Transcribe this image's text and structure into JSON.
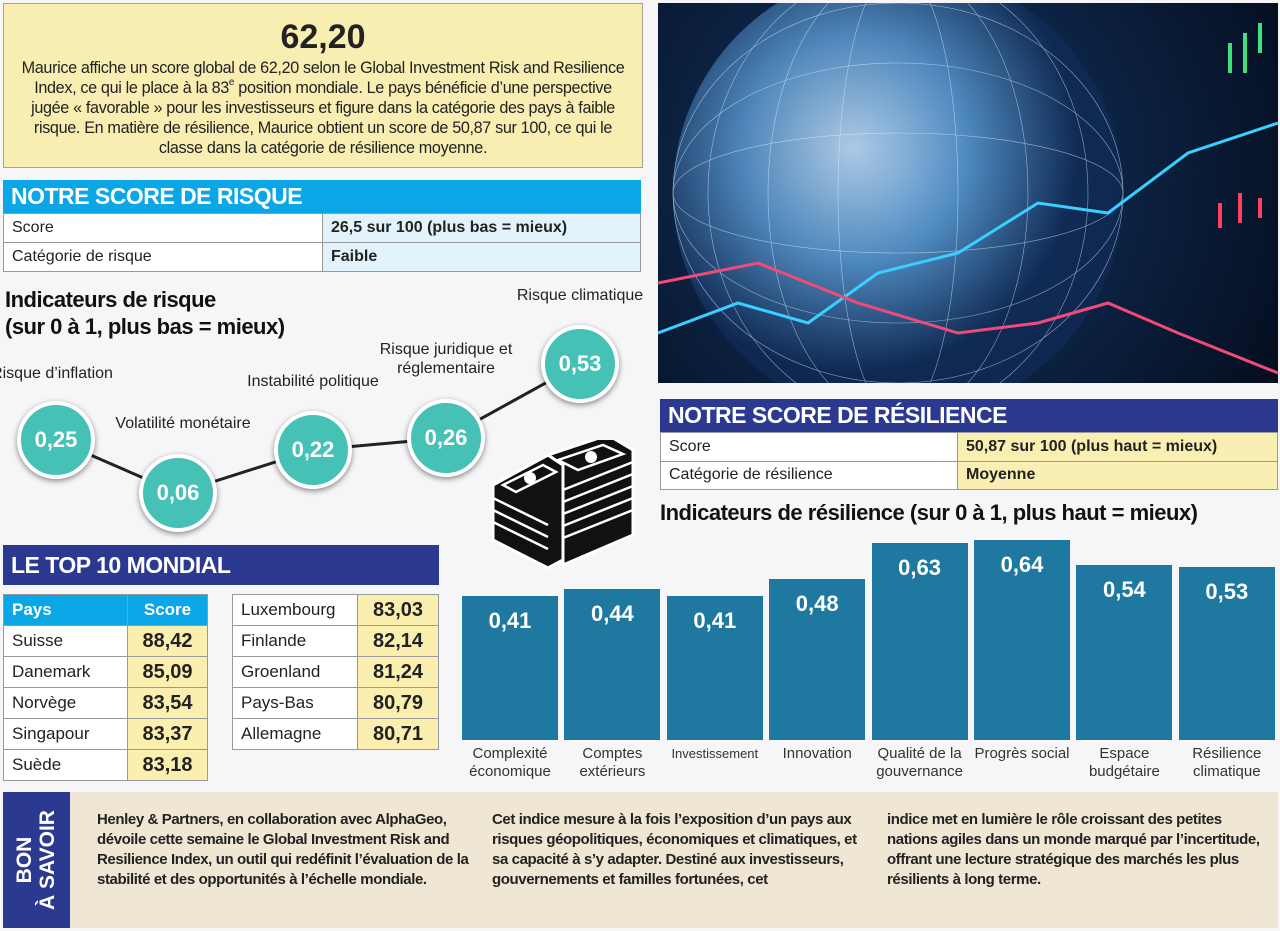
{
  "intro": {
    "score": "62,20",
    "text_before_sup": "Maurice affiche un score global de 62,20 selon le Global Investment Risk and Resilience Index, ce qui le place à la 83",
    "sup": "e",
    "text_after_sup": " position mondiale. Le pays bénéficie d’une perspective jugée « favorable » pour les investisseurs et figure dans la catégorie des pays à faible risque. En matière de résilience, Maurice obtient un score de 50,87 sur 100, ce qui le classe dans la catégorie de résilience moyenne."
  },
  "risk_score": {
    "title": "NOTRE SCORE DE RISQUE",
    "rows": [
      {
        "label": "Score",
        "value": "26,5 sur 100 (plus bas = mieux)"
      },
      {
        "label": "Catégorie de risque",
        "value": "Faible"
      }
    ]
  },
  "risk_indicators": {
    "title_line1": "Indicateurs de risque",
    "title_line2": "(sur 0 à 1, plus bas = mieux)",
    "items": [
      {
        "label": "Risque d’inflation",
        "value": "0,25"
      },
      {
        "label": "Volatilité monétaire",
        "value": "0,06"
      },
      {
        "label": "Instabilité politique",
        "value": "0,22"
      },
      {
        "label": "Risque juridique et réglementaire",
        "value": "0,26"
      },
      {
        "label": "Risque climatique",
        "value": "0,53"
      }
    ]
  },
  "top10": {
    "title": "LE TOP 10 MONDIAL",
    "col_country": "Pays",
    "col_score": "Score",
    "left": [
      {
        "country": "Suisse",
        "score": "88,42"
      },
      {
        "country": "Danemark",
        "score": "85,09"
      },
      {
        "country": "Norvège",
        "score": "83,54"
      },
      {
        "country": "Singapour",
        "score": "83,37"
      },
      {
        "country": "Suède",
        "score": "83,18"
      }
    ],
    "right": [
      {
        "country": "Luxembourg",
        "score": "83,03"
      },
      {
        "country": "Finlande",
        "score": "82,14"
      },
      {
        "country": "Groenland",
        "score": "81,24"
      },
      {
        "country": "Pays-Bas",
        "score": "80,79"
      },
      {
        "country": "Allemagne",
        "score": "80,71"
      }
    ]
  },
  "resilience_score": {
    "title": "NOTRE SCORE DE RÉSILIENCE",
    "rows": [
      {
        "label": "Score",
        "value": "50,87 sur 100 (plus haut = mieux)"
      },
      {
        "label": "Catégorie de résilience",
        "value": "Moyenne"
      }
    ]
  },
  "chart_data": {
    "type": "bar",
    "title": "Indicateurs de résilience (sur 0 à 1, plus haut = mieux)",
    "categories": [
      "Complexité économique",
      "Comptes extérieurs",
      "Investissement",
      "Innovation",
      "Qualité de la gouvernance",
      "Progrès social",
      "Espace budgétaire",
      "Résilience climatique"
    ],
    "values": [
      0.41,
      0.44,
      0.41,
      0.48,
      0.63,
      0.64,
      0.54,
      0.53
    ],
    "value_labels": [
      "0,41",
      "0,44",
      "0,41",
      "0,48",
      "0,63",
      "0,64",
      "0,54",
      "0,53"
    ],
    "bar_color": "#1f78a0",
    "xlabel": "",
    "ylabel": ""
  },
  "bon_a_savoir": {
    "label_line1": "BON",
    "label_line2": "À SAVOIR",
    "columns": [
      "Henley & Partners, en collaboration avec AlphaGeo, dévoile cette semaine le Global Investment Risk and Resilience Index, un outil qui redéfinit l’évaluation de la stabilité et des opportunités à l’échelle mondiale.",
      "Cet indice mesure à la fois l’exposition d’un pays aux risques géopolitiques, économiques et climatiques, et sa capacité à s’y adapter. Destiné aux investisseurs, gouvernements et familles fortunées, cet",
      "indice met en lumière le rôle croissant des petites nations agiles dans un monde marqué par l’incertitude, offrant une lecture stratégique des marchés les plus résilients à long terme."
    ]
  },
  "colors": {
    "risk_header": "#0aa6e6",
    "resilience_header": "#2b3990",
    "top10_header": "#2b3990",
    "circle": "#46c1b6",
    "highlight": "#fbefb0"
  }
}
